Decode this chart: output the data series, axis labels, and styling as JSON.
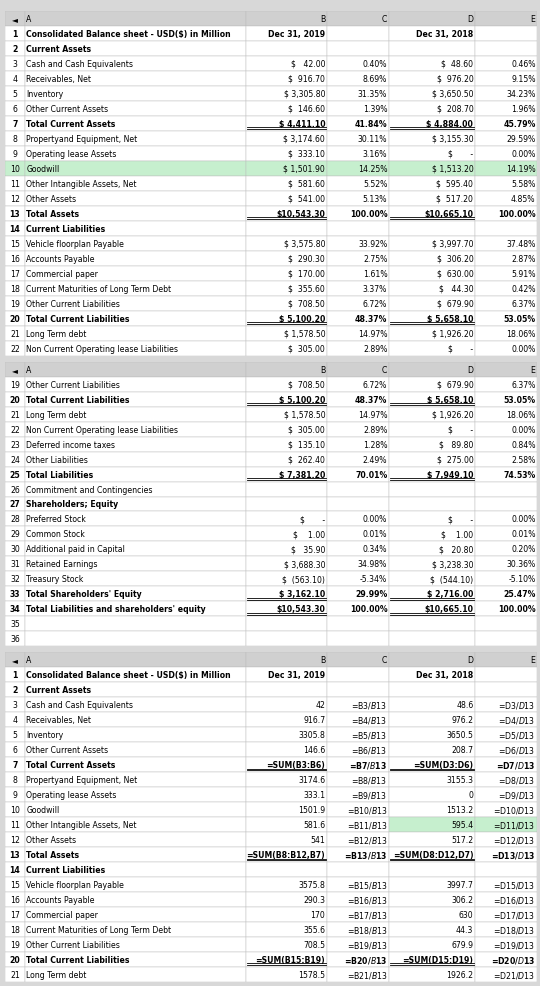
{
  "orange_bar_color": "#f5a623",
  "bg_color": "#d8d8d8",
  "panel_bg": "#ffffff",
  "col_header_bg": "#d0d0d0",
  "grid_color": "#bbbbbb",
  "green_bg": "#c6efce",
  "col_widths": [
    0.16,
    1.85,
    0.68,
    0.52,
    0.72,
    0.52
  ],
  "font_size": 5.6,
  "panel1": {
    "col_headers": [
      "◄",
      "A",
      "B",
      "C",
      "D",
      "E"
    ],
    "row1": [
      "1",
      "Consolidated Balance sheet - USD($) in Million",
      "Dec 31, 2019",
      "",
      "Dec 31, 2018",
      ""
    ],
    "rows": [
      {
        "num": "2",
        "label": "Current Assets",
        "b": "",
        "c": "",
        "d": "",
        "e": "",
        "bold": true,
        "ul": false,
        "green": false
      },
      {
        "num": "3",
        "label": "Cash and Cash Equivalents",
        "b": "$   42.00",
        "c": "0.40%",
        "d": "$  48.60",
        "e": "0.46%",
        "bold": false,
        "ul": false,
        "green": false
      },
      {
        "num": "4",
        "label": "Receivables, Net",
        "b": "$  916.70",
        "c": "8.69%",
        "d": "$  976.20",
        "e": "9.15%",
        "bold": false,
        "ul": false,
        "green": false
      },
      {
        "num": "5",
        "label": "Inventory",
        "b": "$ 3,305.80",
        "c": "31.35%",
        "d": "$ 3,650.50",
        "e": "34.23%",
        "bold": false,
        "ul": false,
        "green": false
      },
      {
        "num": "6",
        "label": "Other Current Assets",
        "b": "$  146.60",
        "c": "1.39%",
        "d": "$  208.70",
        "e": "1.96%",
        "bold": false,
        "ul": false,
        "green": false
      },
      {
        "num": "7",
        "label": "Total Current Assets",
        "b": "$ 4,411.10",
        "c": "41.84%",
        "d": "$ 4,884.00",
        "e": "45.79%",
        "bold": true,
        "ul": true,
        "green": false
      },
      {
        "num": "8",
        "label": "Propertyand Equipment, Net",
        "b": "$ 3,174.60",
        "c": "30.11%",
        "d": "$ 3,155.30",
        "e": "29.59%",
        "bold": false,
        "ul": false,
        "green": false
      },
      {
        "num": "9",
        "label": "Operating lease Assets",
        "b": "$  333.10",
        "c": "3.16%",
        "d": "$       -",
        "e": "0.00%",
        "bold": false,
        "ul": false,
        "green": false
      },
      {
        "num": "10",
        "label": "Goodwill",
        "b": "$ 1,501.90",
        "c": "14.25%",
        "d": "$ 1,513.20",
        "e": "14.19%",
        "bold": false,
        "ul": false,
        "green": true
      },
      {
        "num": "11",
        "label": "Other Intangible Assets, Net",
        "b": "$  581.60",
        "c": "5.52%",
        "d": "$  595.40",
        "e": "5.58%",
        "bold": false,
        "ul": false,
        "green": false
      },
      {
        "num": "12",
        "label": "Other Assets",
        "b": "$  541.00",
        "c": "5.13%",
        "d": "$  517.20",
        "e": "4.85%",
        "bold": false,
        "ul": false,
        "green": false
      },
      {
        "num": "13",
        "label": "Total Assets",
        "b": "$10,543.30",
        "c": "100.00%",
        "d": "$10,665.10",
        "e": "100.00%",
        "bold": true,
        "ul": true,
        "green": false
      },
      {
        "num": "14",
        "label": "Current Liabilities",
        "b": "",
        "c": "",
        "d": "",
        "e": "",
        "bold": true,
        "ul": false,
        "green": false
      },
      {
        "num": "15",
        "label": "Vehicle floorplan Payable",
        "b": "$ 3,575.80",
        "c": "33.92%",
        "d": "$ 3,997.70",
        "e": "37.48%",
        "bold": false,
        "ul": false,
        "green": false
      },
      {
        "num": "16",
        "label": "Accounts Payable",
        "b": "$  290.30",
        "c": "2.75%",
        "d": "$  306.20",
        "e": "2.87%",
        "bold": false,
        "ul": false,
        "green": false
      },
      {
        "num": "17",
        "label": "Commercial paper",
        "b": "$  170.00",
        "c": "1.61%",
        "d": "$  630.00",
        "e": "5.91%",
        "bold": false,
        "ul": false,
        "green": false
      },
      {
        "num": "18",
        "label": "Current Maturities of Long Term Debt",
        "b": "$  355.60",
        "c": "3.37%",
        "d": "$   44.30",
        "e": "0.42%",
        "bold": false,
        "ul": false,
        "green": false
      },
      {
        "num": "19",
        "label": "Other Current Liabilities",
        "b": "$  708.50",
        "c": "6.72%",
        "d": "$  679.90",
        "e": "6.37%",
        "bold": false,
        "ul": false,
        "green": false
      },
      {
        "num": "20",
        "label": "Total Current Liabilities",
        "b": "$ 5,100.20",
        "c": "48.37%",
        "d": "$ 5,658.10",
        "e": "53.05%",
        "bold": true,
        "ul": true,
        "green": false
      },
      {
        "num": "21",
        "label": "Long Term debt",
        "b": "$ 1,578.50",
        "c": "14.97%",
        "d": "$ 1,926.20",
        "e": "18.06%",
        "bold": false,
        "ul": false,
        "green": false
      },
      {
        "num": "22",
        "label": "Non Current Operating lease Liabilities",
        "b": "$  305.00",
        "c": "2.89%",
        "d": "$       -",
        "e": "0.00%",
        "bold": false,
        "ul": false,
        "green": false
      }
    ]
  },
  "panel2": {
    "col_headers": [
      "◄",
      "A",
      "B",
      "C",
      "D",
      "E"
    ],
    "rows": [
      {
        "num": "19",
        "label": "Other Current Liabilities",
        "b": "$  708.50",
        "c": "6.72%",
        "d": "$  679.90",
        "e": "6.37%",
        "bold": false,
        "ul": false
      },
      {
        "num": "20",
        "label": "Total Current Liabilities",
        "b": "$ 5,100.20",
        "c": "48.37%",
        "d": "$ 5,658.10",
        "e": "53.05%",
        "bold": true,
        "ul": true
      },
      {
        "num": "21",
        "label": "Long Term debt",
        "b": "$ 1,578.50",
        "c": "14.97%",
        "d": "$ 1,926.20",
        "e": "18.06%",
        "bold": false,
        "ul": false
      },
      {
        "num": "22",
        "label": "Non Current Operating lease Liabilities",
        "b": "$  305.00",
        "c": "2.89%",
        "d": "$       -",
        "e": "0.00%",
        "bold": false,
        "ul": false
      },
      {
        "num": "23",
        "label": "Deferred income taxes",
        "b": "$  135.10",
        "c": "1.28%",
        "d": "$   89.80",
        "e": "0.84%",
        "bold": false,
        "ul": false
      },
      {
        "num": "24",
        "label": "Other Liabilities",
        "b": "$  262.40",
        "c": "2.49%",
        "d": "$  275.00",
        "e": "2.58%",
        "bold": false,
        "ul": false
      },
      {
        "num": "25",
        "label": "Total Liabilities",
        "b": "$ 7,381.20",
        "c": "70.01%",
        "d": "$ 7,949.10",
        "e": "74.53%",
        "bold": true,
        "ul": true
      },
      {
        "num": "26",
        "label": "Commitment and Contingencies",
        "b": "",
        "c": "",
        "d": "",
        "e": "",
        "bold": false,
        "ul": false
      },
      {
        "num": "27",
        "label": "Shareholders; Equity",
        "b": "",
        "c": "",
        "d": "",
        "e": "",
        "bold": true,
        "ul": false
      },
      {
        "num": "28",
        "label": "Preferred Stock",
        "b": "$       -",
        "c": "0.00%",
        "d": "$       -",
        "e": "0.00%",
        "bold": false,
        "ul": false
      },
      {
        "num": "29",
        "label": "Common Stock",
        "b": "$    1.00",
        "c": "0.01%",
        "d": "$    1.00",
        "e": "0.01%",
        "bold": false,
        "ul": false
      },
      {
        "num": "30",
        "label": "Additional paid in Capital",
        "b": "$   35.90",
        "c": "0.34%",
        "d": "$   20.80",
        "e": "0.20%",
        "bold": false,
        "ul": false
      },
      {
        "num": "31",
        "label": "Retained Earnings",
        "b": "$ 3,688.30",
        "c": "34.98%",
        "d": "$ 3,238.30",
        "e": "30.36%",
        "bold": false,
        "ul": false
      },
      {
        "num": "32",
        "label": "Treasury Stock",
        "b": "$  (563.10)",
        "c": "-5.34%",
        "d": "$  (544.10)",
        "e": "-5.10%",
        "bold": false,
        "ul": false
      },
      {
        "num": "33",
        "label": "Total Shareholders' Equity",
        "b": "$ 3,162.10",
        "c": "29.99%",
        "d": "$ 2,716.00",
        "e": "25.47%",
        "bold": true,
        "ul": true
      },
      {
        "num": "34",
        "label": "Total Liabilities and shareholders' equity",
        "b": "$10,543.30",
        "c": "100.00%",
        "d": "$10,665.10",
        "e": "100.00%",
        "bold": true,
        "ul": true
      },
      {
        "num": "35",
        "label": "",
        "b": "",
        "c": "",
        "d": "",
        "e": "",
        "bold": false,
        "ul": false
      },
      {
        "num": "36",
        "label": "",
        "b": "",
        "c": "",
        "d": "",
        "e": "",
        "bold": false,
        "ul": false
      }
    ]
  },
  "panel3": {
    "col_headers": [
      "◄",
      "A",
      "B",
      "C",
      "D",
      "E"
    ],
    "row1": [
      "1",
      "Consolidated Balance sheet - USD($) in Million",
      "Dec 31, 2019",
      "",
      "Dec 31, 2018",
      ""
    ],
    "rows": [
      {
        "num": "2",
        "label": "Current Assets",
        "b": "",
        "c": "",
        "d": "",
        "e": "",
        "bold": true,
        "ul": false,
        "green": false
      },
      {
        "num": "3",
        "label": "Cash and Cash Equivalents",
        "b": "42",
        "c": "=B3/$B$13",
        "d": "48.6",
        "e": "=D3/$D$13",
        "bold": false,
        "ul": false,
        "green": false
      },
      {
        "num": "4",
        "label": "Receivables, Net",
        "b": "916.7",
        "c": "=B4/$B$13",
        "d": "976.2",
        "e": "=D4/$D$13",
        "bold": false,
        "ul": false,
        "green": false
      },
      {
        "num": "5",
        "label": "Inventory",
        "b": "3305.8",
        "c": "=B5/$B$13",
        "d": "3650.5",
        "e": "=D5/$D$13",
        "bold": false,
        "ul": false,
        "green": false
      },
      {
        "num": "6",
        "label": "Other Current Assets",
        "b": "146.6",
        "c": "=B6/$B$13",
        "d": "208.7",
        "e": "=D6/$D$13",
        "bold": false,
        "ul": false,
        "green": false
      },
      {
        "num": "7",
        "label": "Total Current Assets",
        "b": "=SUM(B3:B6)",
        "c": "=B7/$B$13",
        "d": "=SUM(D3:D6)",
        "e": "=D7/$D$13",
        "bold": true,
        "ul": true,
        "green": false
      },
      {
        "num": "8",
        "label": "Propertyand Equipment, Net",
        "b": "3174.6",
        "c": "=B8/$B$13",
        "d": "3155.3",
        "e": "=D8/$D$13",
        "bold": false,
        "ul": false,
        "green": false
      },
      {
        "num": "9",
        "label": "Operating lease Assets",
        "b": "333.1",
        "c": "=B9/$B$13",
        "d": "0",
        "e": "=D9/$D$13",
        "bold": false,
        "ul": false,
        "green": false
      },
      {
        "num": "10",
        "label": "Goodwill",
        "b": "1501.9",
        "c": "=B10/$B$13",
        "d": "1513.2",
        "e": "=D10/$D$13",
        "bold": false,
        "ul": false,
        "green": false
      },
      {
        "num": "11",
        "label": "Other Intangible Assets, Net",
        "b": "581.6",
        "c": "=B11/$B$13",
        "d": "595.4",
        "e": "=D11/$D$13",
        "bold": false,
        "ul": false,
        "green": true
      },
      {
        "num": "12",
        "label": "Other Assets",
        "b": "541",
        "c": "=B12/$B$13",
        "d": "517.2",
        "e": "=D12/$D$13",
        "bold": false,
        "ul": false,
        "green": false
      },
      {
        "num": "13",
        "label": "Total Assets",
        "b": "=SUM(B8:B12,B7)",
        "c": "=B13/$B$13",
        "d": "=SUM(D8:D12,D7)",
        "e": "=D13/$D$13",
        "bold": true,
        "ul": true,
        "green": false
      },
      {
        "num": "14",
        "label": "Current Liabilities",
        "b": "",
        "c": "",
        "d": "",
        "e": "",
        "bold": true,
        "ul": false,
        "green": false
      },
      {
        "num": "15",
        "label": "Vehicle floorplan Payable",
        "b": "3575.8",
        "c": "=B15/$B$13",
        "d": "3997.7",
        "e": "=D15/$D$13",
        "bold": false,
        "ul": false,
        "green": false
      },
      {
        "num": "16",
        "label": "Accounts Payable",
        "b": "290.3",
        "c": "=B16/$B$13",
        "d": "306.2",
        "e": "=D16/$D$13",
        "bold": false,
        "ul": false,
        "green": false
      },
      {
        "num": "17",
        "label": "Commercial paper",
        "b": "170",
        "c": "=B17/$B$13",
        "d": "630",
        "e": "=D17/$D$13",
        "bold": false,
        "ul": false,
        "green": false
      },
      {
        "num": "18",
        "label": "Current Maturities of Long Term Debt",
        "b": "355.6",
        "c": "=B18/$B$13",
        "d": "44.3",
        "e": "=D18/$D$13",
        "bold": false,
        "ul": false,
        "green": false
      },
      {
        "num": "19",
        "label": "Other Current Liabilities",
        "b": "708.5",
        "c": "=B19/$B$13",
        "d": "679.9",
        "e": "=D19/$D$13",
        "bold": false,
        "ul": false,
        "green": false
      },
      {
        "num": "20",
        "label": "Total Current Liabilities",
        "b": "=SUM(B15:B19)",
        "c": "=B20/$B$13",
        "d": "=SUM(D15:D19)",
        "e": "=D20/$D$13",
        "bold": true,
        "ul": true,
        "green": false
      },
      {
        "num": "21",
        "label": "Long Term debt",
        "b": "1578.5",
        "c": "=B21/$B$13",
        "d": "1926.2",
        "e": "=D21/$D$13",
        "bold": false,
        "ul": false,
        "green": false
      }
    ]
  }
}
